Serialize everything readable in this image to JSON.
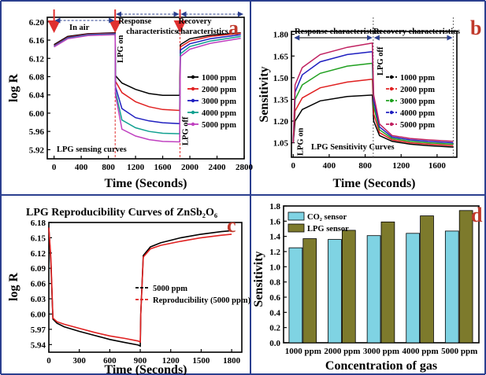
{
  "chart_data": [
    {
      "panel": "a",
      "type": "line",
      "xlabel": "Time (Seconds)",
      "ylabel": "log R",
      "xlim": [
        -100,
        2800
      ],
      "ylim": [
        5.9,
        6.21
      ],
      "xticks": [
        0,
        400,
        800,
        1200,
        1600,
        2000,
        2400,
        2800
      ],
      "yticks": [
        5.92,
        5.96,
        6.0,
        6.04,
        6.08,
        6.12,
        6.16,
        6.2
      ],
      "annotations": {
        "in_air": "In air",
        "response": "Response characteristics",
        "recovery": "Recovery characteristics",
        "lpg_on": "LPG on",
        "lpg_off": "LPG off",
        "curve_label": "LPG sensing curves"
      },
      "series": [
        {
          "name": "1000 ppm",
          "color": "#000000",
          "marker": "square",
          "points": [
            [
              0,
              6.15
            ],
            [
              200,
              6.168
            ],
            [
              500,
              6.174
            ],
            [
              900,
              6.176
            ],
            [
              905,
              6.082
            ],
            [
              1000,
              6.066
            ],
            [
              1200,
              6.052
            ],
            [
              1400,
              6.043
            ],
            [
              1600,
              6.039
            ],
            [
              1850,
              6.039
            ],
            [
              1860,
              6.15
            ],
            [
              2000,
              6.163
            ],
            [
              2300,
              6.171
            ],
            [
              2750,
              6.176
            ]
          ]
        },
        {
          "name": "2000 ppm",
          "color": "#e02020",
          "marker": "circle",
          "points": [
            [
              0,
              6.148
            ],
            [
              200,
              6.166
            ],
            [
              500,
              6.173
            ],
            [
              900,
              6.175
            ],
            [
              905,
              6.07
            ],
            [
              1000,
              6.045
            ],
            [
              1200,
              6.025
            ],
            [
              1400,
              6.014
            ],
            [
              1600,
              6.008
            ],
            [
              1850,
              6.006
            ],
            [
              1860,
              6.145
            ],
            [
              2000,
              6.158
            ],
            [
              2300,
              6.168
            ],
            [
              2750,
              6.175
            ]
          ]
        },
        {
          "name": "3000 ppm",
          "color": "#2020c0",
          "marker": "triangle",
          "points": [
            [
              0,
              6.147
            ],
            [
              200,
              6.165
            ],
            [
              500,
              6.172
            ],
            [
              900,
              6.174
            ],
            [
              905,
              6.058
            ],
            [
              1000,
              6.01
            ],
            [
              1200,
              5.99
            ],
            [
              1400,
              5.983
            ],
            [
              1600,
              5.979
            ],
            [
              1850,
              5.977
            ],
            [
              1860,
              6.138
            ],
            [
              2000,
              6.152
            ],
            [
              2300,
              6.163
            ],
            [
              2750,
              6.172
            ]
          ]
        },
        {
          "name": "4000 ppm",
          "color": "#10a090",
          "marker": "triangle-down",
          "points": [
            [
              0,
              6.146
            ],
            [
              200,
              6.164
            ],
            [
              500,
              6.171
            ],
            [
              900,
              6.173
            ],
            [
              905,
              6.048
            ],
            [
              1000,
              5.985
            ],
            [
              1200,
              5.968
            ],
            [
              1400,
              5.96
            ],
            [
              1600,
              5.956
            ],
            [
              1850,
              5.955
            ],
            [
              1860,
              6.13
            ],
            [
              2000,
              6.146
            ],
            [
              2300,
              6.158
            ],
            [
              2750,
              6.168
            ]
          ]
        },
        {
          "name": "5000 ppm",
          "color": "#c040c0",
          "marker": "diamond",
          "points": [
            [
              0,
              6.145
            ],
            [
              200,
              6.163
            ],
            [
              500,
              6.17
            ],
            [
              900,
              6.172
            ],
            [
              905,
              6.04
            ],
            [
              1000,
              5.965
            ],
            [
              1200,
              5.95
            ],
            [
              1400,
              5.942
            ],
            [
              1600,
              5.938
            ],
            [
              1850,
              5.937
            ],
            [
              1860,
              6.124
            ],
            [
              2000,
              6.14
            ],
            [
              2300,
              6.153
            ],
            [
              2750,
              6.164
            ]
          ]
        }
      ]
    },
    {
      "panel": "b",
      "type": "line",
      "xlabel": "Time (Seconds)",
      "ylabel": "Sensitivity",
      "xlim": [
        -20,
        1820
      ],
      "ylim": [
        0.95,
        1.82
      ],
      "xticks": [
        0,
        400,
        800,
        1200,
        1600
      ],
      "yticks": [
        1.05,
        1.2,
        1.35,
        1.5,
        1.65,
        1.8
      ],
      "annotations": {
        "response": "Response characteristics",
        "recovery": "Recovery characteristics",
        "lpg_on": "LPG on",
        "lpg_off": "LPG off",
        "curve_label": "LPG Sensitivity Curves"
      },
      "series": [
        {
          "name": "1000 ppm",
          "color": "#000000",
          "points": [
            [
              0,
              1.05
            ],
            [
              20,
              1.2
            ],
            [
              100,
              1.28
            ],
            [
              300,
              1.34
            ],
            [
              600,
              1.37
            ],
            [
              880,
              1.38
            ],
            [
              895,
              1.2
            ],
            [
              960,
              1.1
            ],
            [
              1100,
              1.06
            ],
            [
              1300,
              1.04
            ],
            [
              1500,
              1.03
            ],
            [
              1780,
              1.02
            ]
          ]
        },
        {
          "name": "2000 ppm",
          "color": "#e02020",
          "points": [
            [
              0,
              1.05
            ],
            [
              20,
              1.27
            ],
            [
              100,
              1.36
            ],
            [
              300,
              1.43
            ],
            [
              600,
              1.47
            ],
            [
              880,
              1.49
            ],
            [
              895,
              1.25
            ],
            [
              960,
              1.12
            ],
            [
              1100,
              1.07
            ],
            [
              1300,
              1.05
            ],
            [
              1500,
              1.04
            ],
            [
              1780,
              1.03
            ]
          ]
        },
        {
          "name": "3000 ppm",
          "color": "#20a020",
          "points": [
            [
              0,
              1.05
            ],
            [
              20,
              1.35
            ],
            [
              100,
              1.45
            ],
            [
              300,
              1.53
            ],
            [
              600,
              1.58
            ],
            [
              880,
              1.6
            ],
            [
              895,
              1.3
            ],
            [
              960,
              1.14
            ],
            [
              1100,
              1.08
            ],
            [
              1300,
              1.06
            ],
            [
              1500,
              1.05
            ],
            [
              1780,
              1.04
            ]
          ]
        },
        {
          "name": "4000 ppm",
          "color": "#2020c0",
          "points": [
            [
              0,
              1.05
            ],
            [
              20,
              1.4
            ],
            [
              100,
              1.52
            ],
            [
              300,
              1.61
            ],
            [
              600,
              1.66
            ],
            [
              880,
              1.68
            ],
            [
              895,
              1.34
            ],
            [
              960,
              1.16
            ],
            [
              1100,
              1.09
            ],
            [
              1300,
              1.07
            ],
            [
              1500,
              1.06
            ],
            [
              1780,
              1.05
            ]
          ]
        },
        {
          "name": "5000 ppm",
          "color": "#c02060",
          "points": [
            [
              0,
              1.05
            ],
            [
              20,
              1.45
            ],
            [
              100,
              1.57
            ],
            [
              300,
              1.66
            ],
            [
              600,
              1.71
            ],
            [
              880,
              1.74
            ],
            [
              895,
              1.38
            ],
            [
              960,
              1.18
            ],
            [
              1100,
              1.1
            ],
            [
              1300,
              1.08
            ],
            [
              1500,
              1.07
            ],
            [
              1780,
              1.06
            ]
          ]
        }
      ]
    },
    {
      "panel": "c",
      "type": "line",
      "title": "LPG Reproducibility Curves of ZnSb₂O₆",
      "xlabel": "Time (Seconds)",
      "ylabel": "log R",
      "xlim": [
        0,
        1900
      ],
      "ylim": [
        5.925,
        6.18
      ],
      "xticks": [
        0,
        300,
        600,
        900,
        1200,
        1500,
        1800
      ],
      "yticks": [
        5.94,
        5.97,
        6.0,
        6.03,
        6.06,
        6.09,
        6.12,
        6.15,
        6.18
      ],
      "series": [
        {
          "name": "5000 ppm",
          "color": "#000000",
          "points": [
            [
              0,
              6.17
            ],
            [
              20,
              6.1
            ],
            [
              40,
              5.99
            ],
            [
              80,
              5.982
            ],
            [
              150,
              5.975
            ],
            [
              300,
              5.966
            ],
            [
              450,
              5.958
            ],
            [
              600,
              5.95
            ],
            [
              750,
              5.944
            ],
            [
              880,
              5.939
            ],
            [
              900,
              5.937
            ],
            [
              905,
              6.0
            ],
            [
              930,
              6.115
            ],
            [
              1000,
              6.132
            ],
            [
              1100,
              6.14
            ],
            [
              1300,
              6.15
            ],
            [
              1500,
              6.157
            ],
            [
              1700,
              6.162
            ],
            [
              1800,
              6.164
            ]
          ]
        },
        {
          "name": "Reproducibility (5000 ppm)",
          "color": "#e02020",
          "points": [
            [
              0,
              6.17
            ],
            [
              20,
              6.11
            ],
            [
              40,
              5.992
            ],
            [
              80,
              5.985
            ],
            [
              150,
              5.98
            ],
            [
              300,
              5.972
            ],
            [
              450,
              5.964
            ],
            [
              600,
              5.957
            ],
            [
              750,
              5.952
            ],
            [
              880,
              5.947
            ],
            [
              900,
              5.945
            ],
            [
              905,
              6.0
            ],
            [
              930,
              6.112
            ],
            [
              1000,
              6.128
            ],
            [
              1100,
              6.135
            ],
            [
              1300,
              6.143
            ],
            [
              1500,
              6.15
            ],
            [
              1700,
              6.155
            ],
            [
              1800,
              6.157
            ]
          ]
        }
      ]
    },
    {
      "panel": "d",
      "type": "bar",
      "xlabel": "Concentration of gas",
      "ylabel": "Sensitivity",
      "ylim": [
        0,
        1.8
      ],
      "yticks": [
        0.0,
        0.2,
        0.4,
        0.6,
        0.8,
        1.0,
        1.2,
        1.4,
        1.6,
        1.8
      ],
      "categories": [
        "1000 ppm",
        "2000 ppm",
        "3000 ppm",
        "4000 ppm",
        "5000 ppm"
      ],
      "series": [
        {
          "name": "CO₂ sensor",
          "color": "#7fd3e3",
          "values": [
            1.25,
            1.36,
            1.41,
            1.44,
            1.47
          ]
        },
        {
          "name": "LPG sensor",
          "color": "#7d7a2c",
          "values": [
            1.37,
            1.48,
            1.59,
            1.67,
            1.74
          ]
        }
      ]
    }
  ],
  "panel_letters": {
    "a": "a",
    "b": "b",
    "c": "c",
    "d": "d"
  },
  "colors": {
    "divider": "#2b3f8f",
    "arrow": "#e03030",
    "dashed_arrow": "#2b3f8f",
    "panel_letter": "#c0392b"
  }
}
